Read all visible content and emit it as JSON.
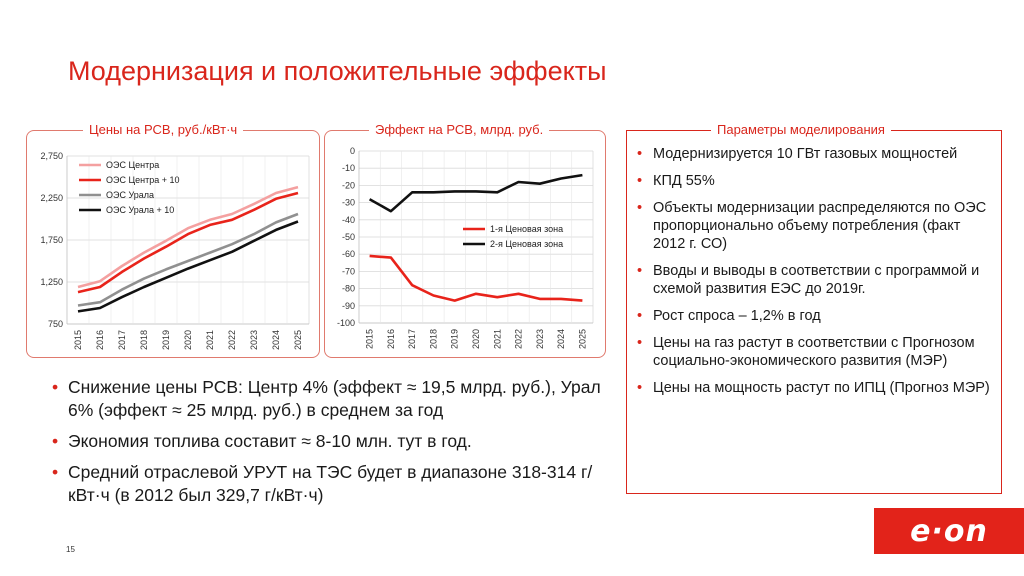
{
  "slide": {
    "title": "Модернизация и положительные эффекты",
    "page_number": "15"
  },
  "panels": {
    "chart1_caption": "Цены на РСВ, руб./кВт·ч",
    "chart2_caption": "Эффект на РСВ, млрд. руб.",
    "params_caption": "Параметры моделирования"
  },
  "params": {
    "bullet": "•",
    "items": [
      "Модернизируется 10 ГВт газовых мощностей",
      "КПД 55%",
      "Объекты модернизации распределяются по ОЭС пропорционально объему потребления (факт 2012 г. СО)",
      "Вводы и выводы в соответствии с программой и схемой развития ЕЭС до 2019г.",
      "Рост спроса – 1,2% в год",
      "Цены на газ растут в соответствии с Прогнозом социально-экономического развития (МЭР)",
      "Цены на мощность растут по ИПЦ (Прогноз МЭР)"
    ]
  },
  "main_points": {
    "bullet": "•",
    "items": [
      "Снижение цены РСВ: Центр 4% (эффект ≈ 19,5 млрд. руб.), Урал 6% (эффект ≈ 25 млрд. руб.) в среднем за год",
      "Экономия топлива составит ≈ 8-10 млн. тут в год.",
      "Средний отраслевой УРУТ на ТЭС будет в диапазоне 318-314 г/кВт·ч (в 2012 был 329,7 г/кВт·ч)"
    ]
  },
  "logo": {
    "text": "e·on",
    "color": "#e2231a"
  },
  "chart_data": [
    {
      "type": "line",
      "title": "Цены на РСВ, руб./кВт·ч",
      "x": [
        "2015",
        "2016",
        "2017",
        "2018",
        "2019",
        "2020",
        "2021",
        "2022",
        "2023",
        "2024",
        "2025"
      ],
      "ylim": [
        750,
        2750
      ],
      "yticks": [
        "750",
        "1,250",
        "1,750",
        "2,250",
        "2,750"
      ],
      "ytick_values": [
        750,
        1250,
        1750,
        2250,
        2750
      ],
      "grid": true,
      "legend": "top-left",
      "series": [
        {
          "name": "ОЭС Центра",
          "color": "#f4a0a0",
          "values": [
            1190,
            1260,
            1440,
            1600,
            1740,
            1890,
            1990,
            2060,
            2180,
            2310,
            2380
          ]
        },
        {
          "name": "ОЭС Центра + 10",
          "color": "#e8231a",
          "values": [
            1130,
            1190,
            1370,
            1530,
            1670,
            1820,
            1930,
            1990,
            2110,
            2240,
            2310
          ]
        },
        {
          "name": "ОЭС Урала",
          "color": "#909090",
          "values": [
            970,
            1010,
            1160,
            1290,
            1400,
            1500,
            1600,
            1700,
            1820,
            1960,
            2060
          ]
        },
        {
          "name": "ОЭС Урала + 10",
          "color": "#111111",
          "values": [
            900,
            940,
            1070,
            1190,
            1300,
            1410,
            1510,
            1610,
            1740,
            1870,
            1970
          ]
        }
      ]
    },
    {
      "type": "line",
      "title": "Эффект на РСВ, млрд. руб.",
      "x": [
        "2015",
        "2016",
        "2017",
        "2018",
        "2019",
        "2020",
        "2021",
        "2022",
        "2023",
        "2024",
        "2025"
      ],
      "ylim": [
        -100,
        0
      ],
      "yticks": [
        "0",
        "-10",
        "-20",
        "-30",
        "-40",
        "-50",
        "-60",
        "-70",
        "-80",
        "-90",
        "-100"
      ],
      "ytick_values": [
        0,
        -10,
        -20,
        -30,
        -40,
        -50,
        -60,
        -70,
        -80,
        -90,
        -100
      ],
      "grid": true,
      "legend": "middle-right",
      "series": [
        {
          "name": "1-я Ценовая зона",
          "color": "#e8231a",
          "values": [
            -61,
            -62,
            -78,
            -84,
            -87,
            -83,
            -85,
            -83,
            -86,
            -86,
            -87
          ]
        },
        {
          "name": "2-я Ценовая зона",
          "color": "#111111",
          "values": [
            -28,
            -35,
            -24,
            -24,
            -23.5,
            -23.5,
            -24,
            -18,
            -19,
            -16,
            -14
          ]
        }
      ]
    }
  ]
}
